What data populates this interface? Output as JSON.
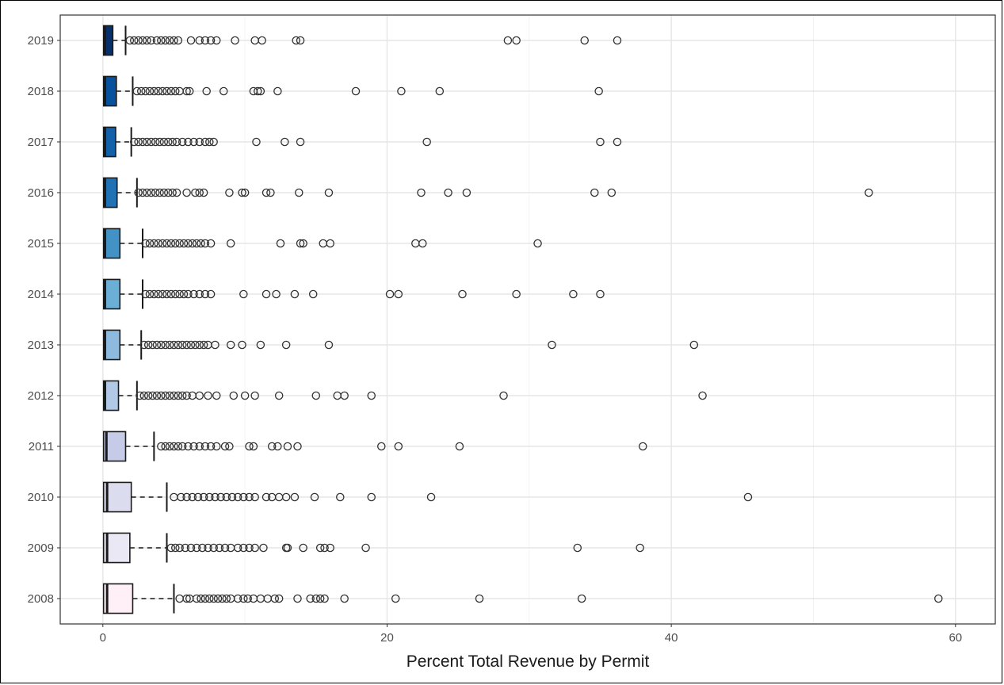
{
  "chart_data": {
    "type": "boxplot",
    "orientation": "horizontal",
    "title": "",
    "xlabel": "Percent Total Revenue by Permit",
    "ylabel": "",
    "xlim": [
      -3,
      62.8
    ],
    "xticks": [
      0,
      20,
      40,
      60
    ],
    "xtick_labels": [
      "0",
      "20",
      "40",
      "60"
    ],
    "grid": true,
    "legend": "none",
    "colors": {
      "2019": "#08306b",
      "2018": "#08519c",
      "2017": "#1361a9",
      "2016": "#2171b5",
      "2015": "#4292c6",
      "2014": "#6baed6",
      "2013": "#8fbadf",
      "2012": "#b1c8e6",
      "2011": "#c6cbe8",
      "2010": "#dcdcef",
      "2009": "#ebe8f5",
      "2008": "#fff0f7"
    },
    "categories": [
      "2019",
      "2018",
      "2017",
      "2016",
      "2015",
      "2014",
      "2013",
      "2012",
      "2011",
      "2010",
      "2009",
      "2008"
    ],
    "boxes": [
      {
        "year": "2019",
        "whisker_low": 0,
        "q1": 0.05,
        "median": 0.15,
        "q3": 0.7,
        "whisker_high": 1.6,
        "outliers": [
          1.9,
          2.2,
          2.5,
          2.8,
          3.1,
          3.4,
          3.8,
          4.1,
          4.4,
          4.7,
          5.0,
          5.3,
          6.2,
          6.8,
          7.2,
          7.6,
          8.0,
          9.3,
          10.7,
          11.2,
          13.6,
          13.9,
          28.5,
          29.1,
          33.9,
          36.2
        ]
      },
      {
        "year": "2018",
        "whisker_low": 0,
        "q1": 0.05,
        "median": 0.15,
        "q3": 0.95,
        "whisker_high": 2.1,
        "outliers": [
          2.4,
          2.7,
          3.0,
          3.3,
          3.6,
          3.9,
          4.2,
          4.5,
          4.8,
          5.1,
          5.4,
          5.9,
          6.1,
          7.3,
          8.5,
          10.6,
          10.9,
          11.1,
          12.3,
          17.8,
          21.0,
          23.7,
          34.9
        ]
      },
      {
        "year": "2017",
        "whisker_low": 0,
        "q1": 0.05,
        "median": 0.15,
        "q3": 0.9,
        "whisker_high": 2.0,
        "outliers": [
          2.2,
          2.5,
          2.8,
          3.1,
          3.4,
          3.7,
          4.0,
          4.3,
          4.6,
          4.9,
          5.2,
          5.6,
          6.0,
          6.4,
          6.8,
          7.2,
          7.5,
          7.8,
          10.8,
          12.8,
          13.9,
          22.8,
          35.0,
          36.2
        ]
      },
      {
        "year": "2016",
        "whisker_low": 0,
        "q1": 0.05,
        "median": 0.15,
        "q3": 1.0,
        "whisker_high": 2.4,
        "outliers": [
          2.5,
          2.8,
          3.1,
          3.4,
          3.7,
          4.0,
          4.3,
          4.6,
          4.9,
          5.2,
          5.9,
          6.5,
          6.8,
          7.1,
          8.9,
          9.8,
          10.0,
          11.5,
          11.8,
          13.8,
          15.9,
          22.4,
          24.3,
          25.6,
          34.6,
          35.8,
          53.9
        ]
      },
      {
        "year": "2015",
        "whisker_low": 0,
        "q1": 0.05,
        "median": 0.15,
        "q3": 1.2,
        "whisker_high": 2.8,
        "outliers": [
          3.0,
          3.3,
          3.6,
          3.9,
          4.2,
          4.5,
          4.8,
          5.1,
          5.4,
          5.7,
          6.0,
          6.3,
          6.6,
          6.9,
          7.2,
          7.6,
          9.0,
          12.5,
          13.9,
          14.1,
          15.5,
          16.0,
          22.0,
          22.5,
          30.6
        ]
      },
      {
        "year": "2014",
        "whisker_low": 0,
        "q1": 0.05,
        "median": 0.15,
        "q3": 1.2,
        "whisker_high": 2.8,
        "outliers": [
          3.0,
          3.3,
          3.6,
          3.9,
          4.2,
          4.5,
          4.8,
          5.1,
          5.4,
          5.7,
          6.0,
          6.4,
          6.8,
          7.2,
          7.6,
          9.9,
          11.5,
          12.2,
          13.5,
          14.8,
          20.2,
          20.8,
          25.3,
          29.1,
          33.1,
          35.0
        ]
      },
      {
        "year": "2013",
        "whisker_low": 0,
        "q1": 0.05,
        "median": 0.15,
        "q3": 1.2,
        "whisker_high": 2.7,
        "outliers": [
          2.9,
          3.2,
          3.5,
          3.8,
          4.1,
          4.4,
          4.7,
          5.0,
          5.3,
          5.6,
          5.9,
          6.2,
          6.5,
          6.8,
          7.1,
          7.4,
          7.9,
          9.0,
          9.8,
          11.1,
          12.9,
          15.9,
          31.6,
          41.6
        ]
      },
      {
        "year": "2012",
        "whisker_low": 0,
        "q1": 0.05,
        "median": 0.15,
        "q3": 1.1,
        "whisker_high": 2.4,
        "outliers": [
          2.6,
          2.9,
          3.2,
          3.5,
          3.8,
          4.1,
          4.4,
          4.7,
          5.0,
          5.3,
          5.6,
          5.9,
          6.3,
          6.8,
          7.4,
          8.0,
          9.2,
          10.0,
          10.7,
          12.4,
          15.0,
          16.5,
          17.0,
          18.9,
          28.2,
          42.2
        ]
      },
      {
        "year": "2011",
        "whisker_low": 0,
        "q1": 0.05,
        "median": 0.25,
        "q3": 1.6,
        "whisker_high": 3.6,
        "outliers": [
          4.1,
          4.4,
          4.7,
          5.0,
          5.3,
          5.6,
          6.0,
          6.4,
          6.8,
          7.2,
          7.6,
          8.0,
          8.6,
          8.9,
          10.3,
          10.6,
          11.9,
          12.3,
          13.0,
          13.7,
          19.6,
          20.8,
          25.1,
          38.0
        ]
      },
      {
        "year": "2010",
        "whisker_low": 0,
        "q1": 0.05,
        "median": 0.3,
        "q3": 2.0,
        "whisker_high": 4.5,
        "outliers": [
          5.0,
          5.5,
          5.9,
          6.3,
          6.7,
          7.1,
          7.5,
          7.9,
          8.3,
          8.7,
          9.1,
          9.5,
          9.9,
          10.3,
          10.7,
          11.5,
          11.9,
          12.4,
          12.9,
          13.5,
          14.9,
          16.7,
          18.9,
          23.1,
          45.4
        ]
      },
      {
        "year": "2009",
        "whisker_low": 0,
        "q1": 0.05,
        "median": 0.3,
        "q3": 1.9,
        "whisker_high": 4.5,
        "outliers": [
          4.8,
          5.1,
          5.4,
          5.8,
          6.2,
          6.6,
          7.0,
          7.4,
          7.8,
          8.2,
          8.6,
          9.0,
          9.5,
          9.9,
          10.3,
          10.7,
          11.3,
          12.9,
          13.0,
          14.1,
          15.3,
          15.6,
          16.0,
          18.5,
          33.4,
          37.8
        ]
      },
      {
        "year": "2008",
        "whisker_low": 0,
        "q1": 0.05,
        "median": 0.3,
        "q3": 2.1,
        "whisker_high": 5.0,
        "outliers": [
          5.4,
          5.9,
          6.1,
          6.6,
          6.9,
          7.2,
          7.5,
          7.8,
          8.1,
          8.4,
          8.7,
          9.0,
          9.5,
          9.9,
          10.2,
          10.6,
          11.1,
          11.6,
          12.1,
          12.4,
          13.7,
          14.6,
          15.0,
          15.3,
          15.6,
          17.0,
          20.6,
          26.5,
          33.7,
          58.8
        ]
      }
    ]
  }
}
